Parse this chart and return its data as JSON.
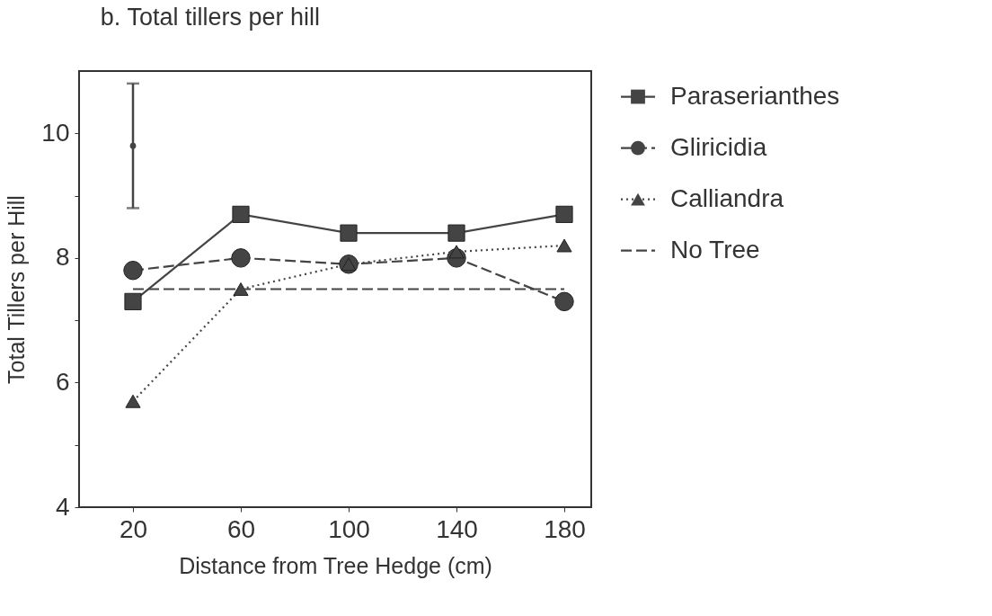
{
  "chart_data": {
    "type": "line",
    "title": "b.  Total tillers per hill",
    "xlabel": "Distance from Tree Hedge (cm)",
    "ylabel": "Total Tillers per Hill",
    "x": [
      20,
      60,
      100,
      140,
      180
    ],
    "xlim": [
      0,
      190
    ],
    "xticks": [
      20,
      60,
      100,
      140,
      180
    ],
    "ylim": [
      4,
      11
    ],
    "yticks": [
      4,
      {
        "value": 5,
        "label": null
      },
      6,
      {
        "value": 7,
        "label": null
      },
      8,
      {
        "value": 9,
        "label": null
      },
      10
    ],
    "grid": false,
    "legend": "top right",
    "series": [
      {
        "name": "Paraserianthes",
        "color": "#444444",
        "values": [
          7.3,
          8.7,
          8.4,
          8.4,
          8.7
        ],
        "marker": "square",
        "line_style": "solid"
      },
      {
        "name": "Gliricidia",
        "color": "#444444",
        "values": [
          7.8,
          8.0,
          7.9,
          8.0,
          7.3
        ],
        "marker": "circle",
        "line_style": "dashed"
      },
      {
        "name": "Calliandra",
        "color": "#444444",
        "values": [
          5.7,
          7.5,
          7.9,
          8.1,
          8.2
        ],
        "marker": "triangle",
        "line_style": "dotted"
      },
      {
        "name": "No Tree",
        "color": "#444444",
        "values": [
          7.5,
          7.5,
          7.5,
          7.5,
          7.5
        ],
        "marker": "none",
        "line_style": "dashed"
      },
      {
        "color": "#444444",
        "values": [
          9.8,
          null,
          null,
          null,
          null
        ],
        "errors": [
          1,
          null,
          null,
          null,
          null
        ],
        "marker": "none",
        "line_style": "solid"
      }
    ]
  }
}
